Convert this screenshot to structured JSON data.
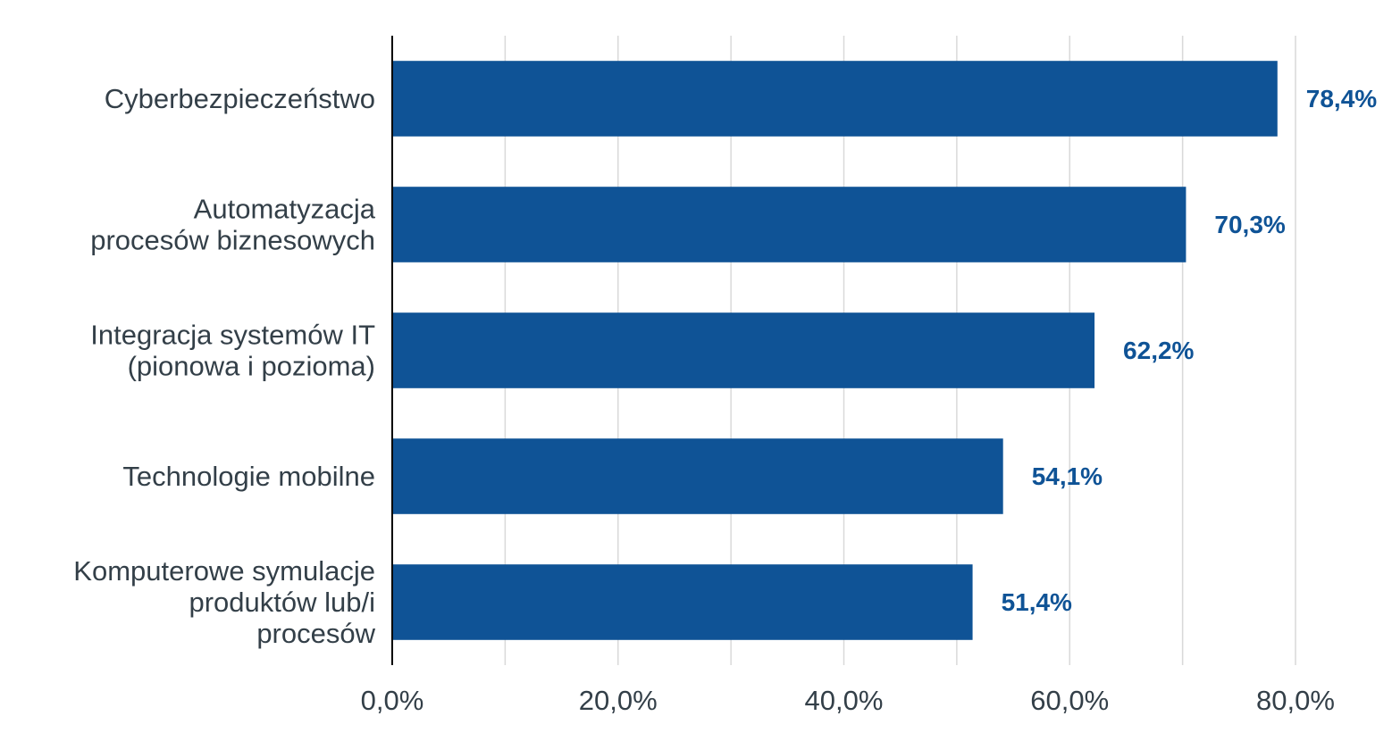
{
  "chart_data": {
    "type": "bar",
    "orientation": "horizontal",
    "categories": [
      [
        "Cyberbezpieczeństwo"
      ],
      [
        "Automatyzacja",
        "procesów biznesowych"
      ],
      [
        "Integracja systemów IT",
        "(pionowa i pozioma)"
      ],
      [
        "Technologie mobilne"
      ],
      [
        "Komputerowe symulacje",
        "produktów lub/i",
        "procesów"
      ]
    ],
    "values": [
      78.4,
      70.3,
      62.2,
      54.1,
      51.4
    ],
    "data_labels": [
      "78,4%",
      "70,3%",
      "62,2%",
      "54,1%",
      "51,4%"
    ],
    "xlim": [
      0,
      80
    ],
    "x_ticks": [
      0,
      20,
      40,
      60,
      80
    ],
    "x_tick_labels": [
      "0,0%",
      "20,0%",
      "40,0%",
      "60,0%",
      "80,0%"
    ],
    "minor_gridlines": [
      10,
      30,
      50,
      70
    ],
    "grid": true,
    "legend": "none",
    "colors": {
      "bar": "#0f5396",
      "data_label": "#0f5396",
      "grid": "#d9d9d9",
      "axis": "#000000",
      "text": "#333f48"
    }
  }
}
